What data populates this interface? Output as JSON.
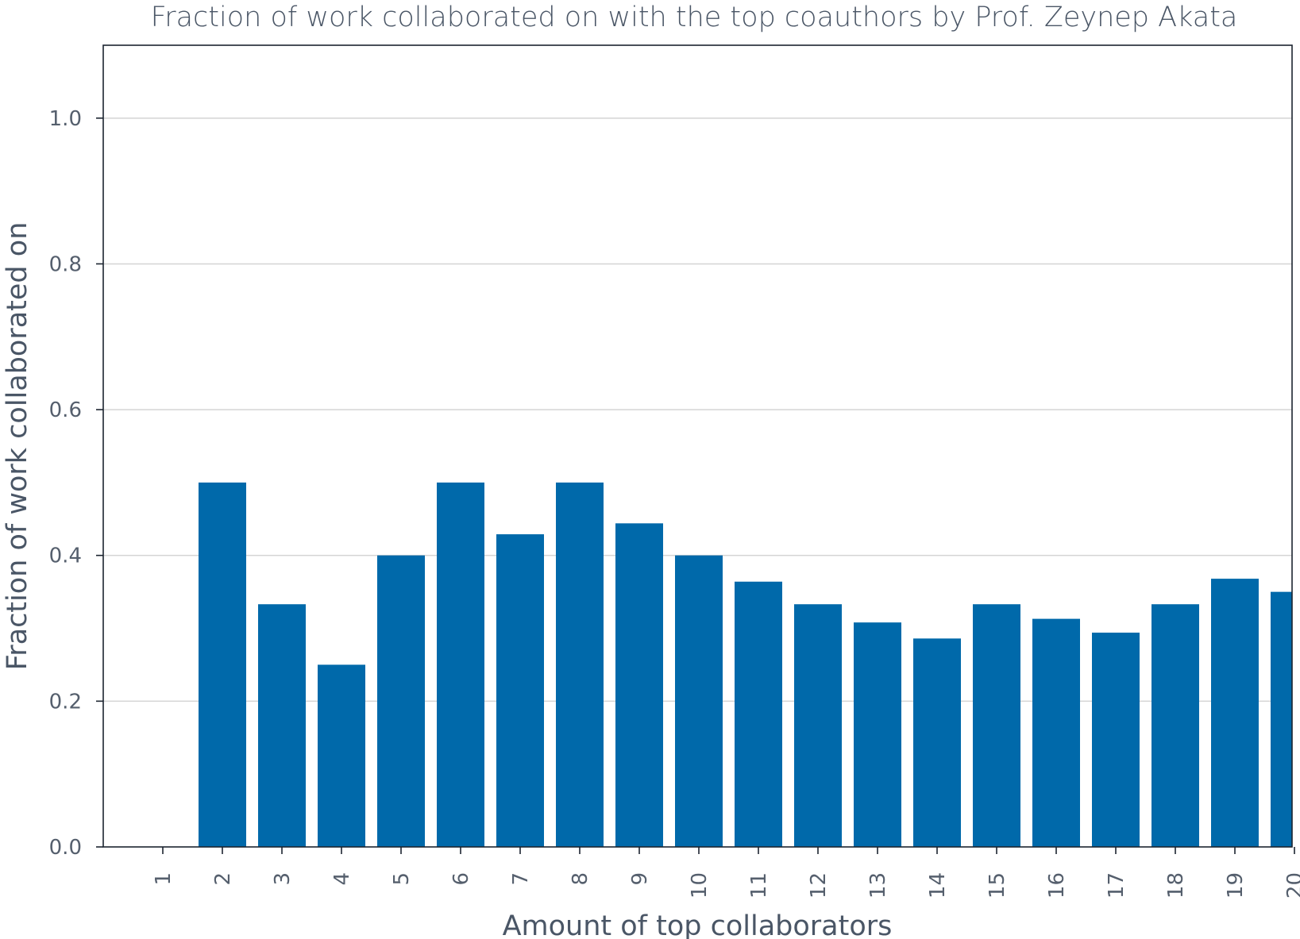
{
  "chart_data": {
    "type": "bar",
    "title": "Fraction of work collaborated on with the top coauthors by Prof. Zeynep Akata",
    "xlabel": "Amount of top collaborators",
    "ylabel": "Fraction of work collaborated on",
    "categories": [
      "1",
      "2",
      "3",
      "4",
      "5",
      "6",
      "7",
      "8",
      "9",
      "10",
      "11",
      "12",
      "13",
      "14",
      "15",
      "16",
      "17",
      "18",
      "19",
      "20"
    ],
    "values": [
      0.0,
      0.5,
      0.333,
      0.25,
      0.4,
      0.5,
      0.429,
      0.5,
      0.444,
      0.4,
      0.364,
      0.333,
      0.308,
      0.286,
      0.333,
      0.313,
      0.294,
      0.333,
      0.368,
      0.35
    ],
    "ylim": [
      0,
      1.1
    ],
    "yticks": [
      0.0,
      0.2,
      0.4,
      0.6,
      0.8,
      1.0
    ],
    "ytick_labels": [
      "0.0",
      "0.2",
      "0.4",
      "0.6",
      "0.8",
      "1.0"
    ],
    "grid": "horizontal",
    "legend": "none",
    "bar_color": "#0069aa"
  }
}
